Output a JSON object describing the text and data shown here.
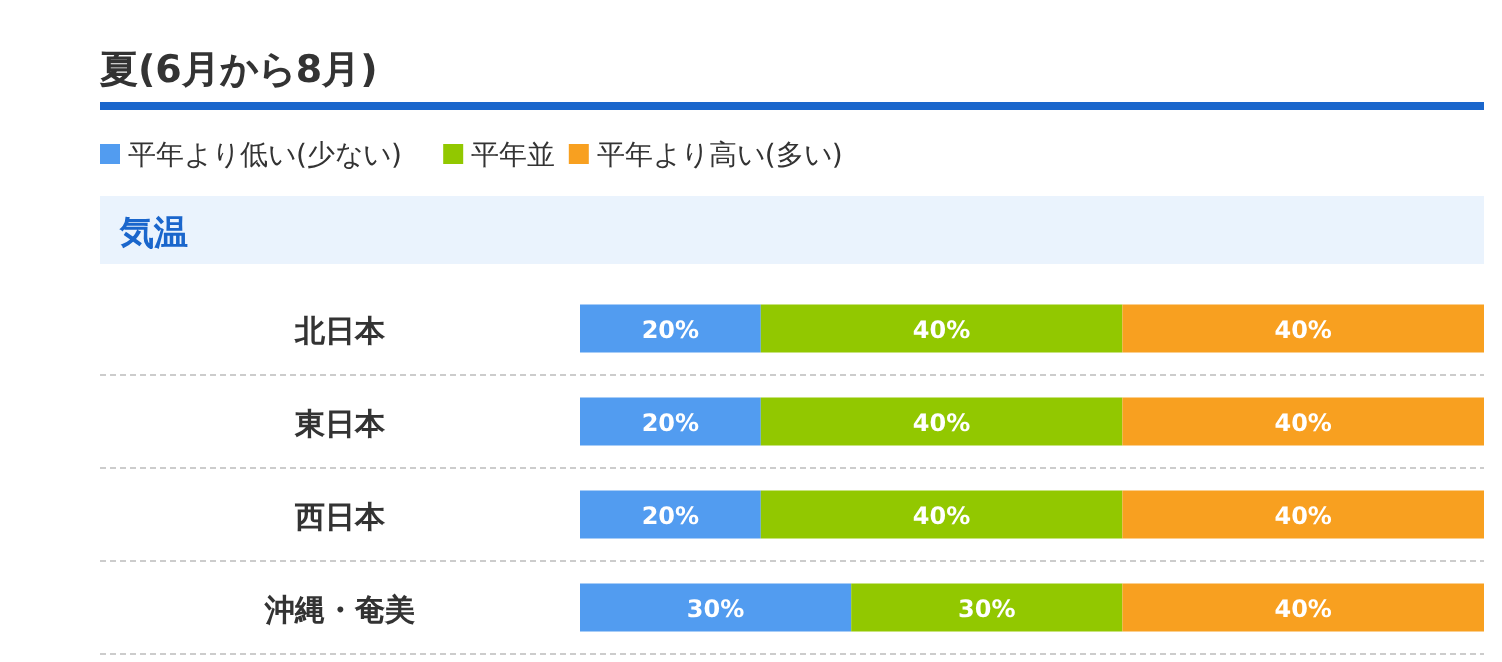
{
  "chart_data": {
    "type": "bar",
    "orientation": "horizontal",
    "stacked": true,
    "title": "夏(6月から8月)",
    "subtitle": "気温",
    "categories": [
      "北日本",
      "東日本",
      "西日本",
      "沖縄・奄美"
    ],
    "xlim": [
      0,
      100
    ],
    "tick_labels": "y",
    "legend": "top left",
    "series": [
      {
        "name": "平年より低い(少ない)",
        "color": "#529cf0",
        "values": [
          20,
          20,
          20,
          30
        ],
        "value_labels": [
          "20%",
          "20%",
          "20%",
          "30%"
        ]
      },
      {
        "name": "平年並",
        "color": "#92c800",
        "values": [
          40,
          40,
          40,
          30
        ],
        "value_labels": [
          "40%",
          "40%",
          "40%",
          "30%"
        ]
      },
      {
        "name": "平年より高い(多い)",
        "color": "#f8a020",
        "values": [
          40,
          40,
          40,
          40
        ],
        "value_labels": [
          "40%",
          "40%",
          "40%",
          "40%"
        ]
      }
    ]
  }
}
